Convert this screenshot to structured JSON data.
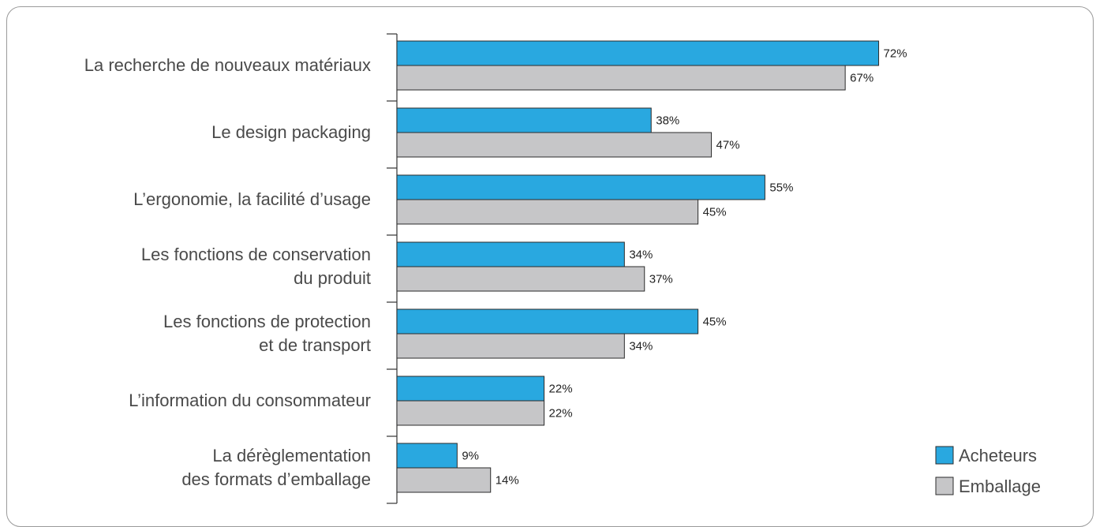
{
  "chart_data": {
    "type": "bar",
    "orientation": "horizontal",
    "categories": [
      [
        "La recherche de nouveaux matériaux"
      ],
      [
        "Le design packaging"
      ],
      [
        "L’ergonomie, la facilité d’usage"
      ],
      [
        "Les fonctions de conservation",
        "du produit"
      ],
      [
        "Les fonctions de protection",
        "et de transport"
      ],
      [
        "L’information du consommateur"
      ],
      [
        "La dérèglementation",
        "des formats d’emballage"
      ]
    ],
    "series": [
      {
        "name": "Acheteurs",
        "color": "#29a8e0",
        "values": [
          72,
          38,
          55,
          34,
          45,
          22,
          9
        ],
        "labels": [
          "72%",
          "38%",
          "55%",
          "34%",
          "45%",
          "22%",
          "9%"
        ]
      },
      {
        "name": "Emballage",
        "color": "#c6c6c8",
        "values": [
          67,
          47,
          45,
          37,
          34,
          22,
          14
        ],
        "labels": [
          "67%",
          "47%",
          "45%",
          "37%",
          "34%",
          "22%",
          "14%"
        ]
      }
    ],
    "xlim": [
      0,
      100
    ],
    "value_suffix": "%",
    "legend_position": "bottom-right",
    "grid": false
  }
}
